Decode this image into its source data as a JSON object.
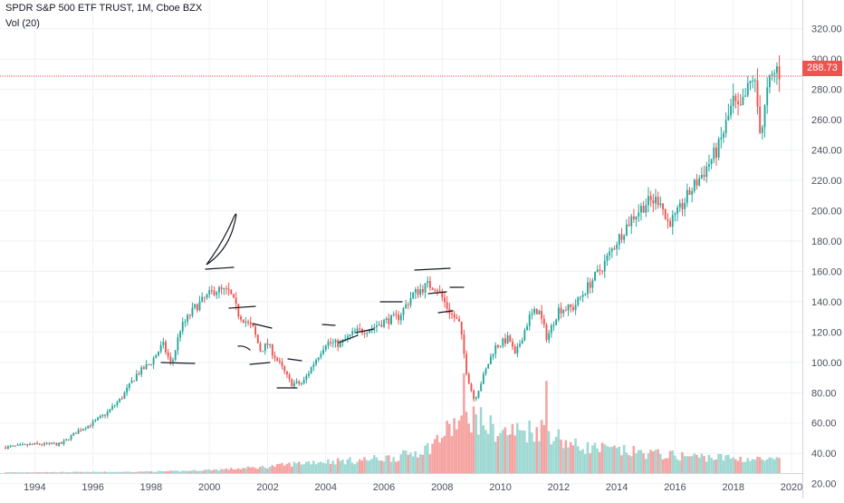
{
  "legend": {
    "title": "SPDR S&P 500 ETF TRUST, 1M, Cboe BZX",
    "volume": "Vol (20)"
  },
  "last_price_label": "288.73",
  "colors": {
    "up": "#26a69a",
    "down": "#ef5350",
    "vol_up": "#9fd8d2",
    "vol_down": "#f5a3a1",
    "grid": "#eef1f5",
    "axis_text": "#4a4f5c",
    "price_line": "#ef5350",
    "drawing": "#131722"
  },
  "chart_data": {
    "type": "candlestick",
    "title": "SPDR S&P 500 ETF TRUST, 1M, Cboe BZX",
    "x_tick_labels": [
      "1994",
      "1996",
      "1998",
      "2000",
      "2002",
      "2004",
      "2006",
      "2008",
      "2010",
      "2012",
      "2014",
      "2016",
      "2018",
      "2020"
    ],
    "y_tick_labels": [
      "20.00",
      "40.00",
      "60.00",
      "80.00",
      "100.00",
      "120.00",
      "140.00",
      "160.00",
      "180.00",
      "200.00",
      "220.00",
      "240.00",
      "260.00",
      "280.00",
      "300.00",
      "320.00"
    ],
    "xlim": [
      1992.9,
      2020.0
    ],
    "ylim": [
      18,
      330
    ],
    "last_price": 288.73,
    "series_anchors": [
      [
        1993.0,
        44
      ],
      [
        1994.0,
        46
      ],
      [
        1994.9,
        46
      ],
      [
        1995.5,
        55
      ],
      [
        1996.0,
        60
      ],
      [
        1996.5,
        67
      ],
      [
        1997.0,
        77
      ],
      [
        1997.5,
        92
      ],
      [
        1998.0,
        100
      ],
      [
        1998.4,
        112
      ],
      [
        1998.7,
        98
      ],
      [
        1999.0,
        122
      ],
      [
        1999.5,
        136
      ],
      [
        1999.9,
        143
      ],
      [
        2000.2,
        148
      ],
      [
        2000.7,
        146
      ],
      [
        2001.0,
        132
      ],
      [
        2001.5,
        122
      ],
      [
        2001.75,
        108
      ],
      [
        2002.0,
        112
      ],
      [
        2002.5,
        96
      ],
      [
        2002.8,
        86
      ],
      [
        2003.2,
        86
      ],
      [
        2003.6,
        100
      ],
      [
        2004.0,
        113
      ],
      [
        2004.5,
        112
      ],
      [
        2005.0,
        120
      ],
      [
        2005.5,
        122
      ],
      [
        2006.0,
        127
      ],
      [
        2006.5,
        130
      ],
      [
        2007.0,
        145
      ],
      [
        2007.5,
        151
      ],
      [
        2007.8,
        150
      ],
      [
        2008.2,
        135
      ],
      [
        2008.6,
        125
      ],
      [
        2008.85,
        92
      ],
      [
        2009.1,
        75
      ],
      [
        2009.3,
        85
      ],
      [
        2009.8,
        110
      ],
      [
        2010.3,
        116
      ],
      [
        2010.5,
        104
      ],
      [
        2011.0,
        130
      ],
      [
        2011.3,
        135
      ],
      [
        2011.6,
        116
      ],
      [
        2012.0,
        135
      ],
      [
        2012.5,
        136
      ],
      [
        2013.0,
        150
      ],
      [
        2013.5,
        163
      ],
      [
        2014.0,
        180
      ],
      [
        2014.5,
        195
      ],
      [
        2015.0,
        205
      ],
      [
        2015.5,
        208
      ],
      [
        2015.7,
        192
      ],
      [
        2016.0,
        195
      ],
      [
        2016.5,
        212
      ],
      [
        2017.0,
        226
      ],
      [
        2017.5,
        242
      ],
      [
        2018.0,
        272
      ],
      [
        2018.2,
        264
      ],
      [
        2018.7,
        290
      ],
      [
        2018.95,
        250
      ],
      [
        2019.2,
        282
      ],
      [
        2019.5,
        294
      ],
      [
        2019.62,
        288.73
      ]
    ],
    "volume_anchors": [
      [
        1993.0,
        0.3
      ],
      [
        1995.0,
        0.4
      ],
      [
        1997.0,
        0.5
      ],
      [
        1999.0,
        0.8
      ],
      [
        2000.5,
        1.5
      ],
      [
        2002.0,
        2.5
      ],
      [
        2003.5,
        4.5
      ],
      [
        2005.0,
        5.0
      ],
      [
        2006.5,
        6.5
      ],
      [
        2007.5,
        10
      ],
      [
        2008.5,
        20
      ],
      [
        2009.0,
        23
      ],
      [
        2010.0,
        16
      ],
      [
        2011.5,
        18
      ],
      [
        2012.5,
        11
      ],
      [
        2014.0,
        9
      ],
      [
        2016.0,
        7
      ],
      [
        2018.0,
        6
      ],
      [
        2019.6,
        5
      ]
    ],
    "volume_spikes": [
      [
        2008.75,
        40
      ],
      [
        2011.6,
        37
      ]
    ],
    "volume_max": 40,
    "grid": true
  }
}
